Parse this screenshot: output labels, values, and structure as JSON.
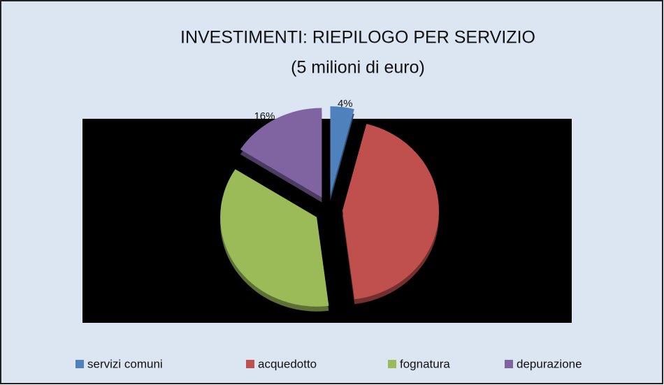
{
  "chart_data": {
    "type": "pie",
    "title": "INVESTIMENTI: RIEPILOGO PER SERVIZIO",
    "subtitle": "(5 milioni di euro)",
    "categories": [
      "servizi comuni",
      "acquedotto",
      "fognatura",
      "depurazione"
    ],
    "values": [
      4,
      44,
      36,
      16
    ],
    "value_labels": [
      "4%",
      null,
      null,
      "16%"
    ],
    "colors": [
      "#4f81bd",
      "#c0504d",
      "#9bbb59",
      "#8064a2"
    ],
    "legend": "bottom"
  }
}
